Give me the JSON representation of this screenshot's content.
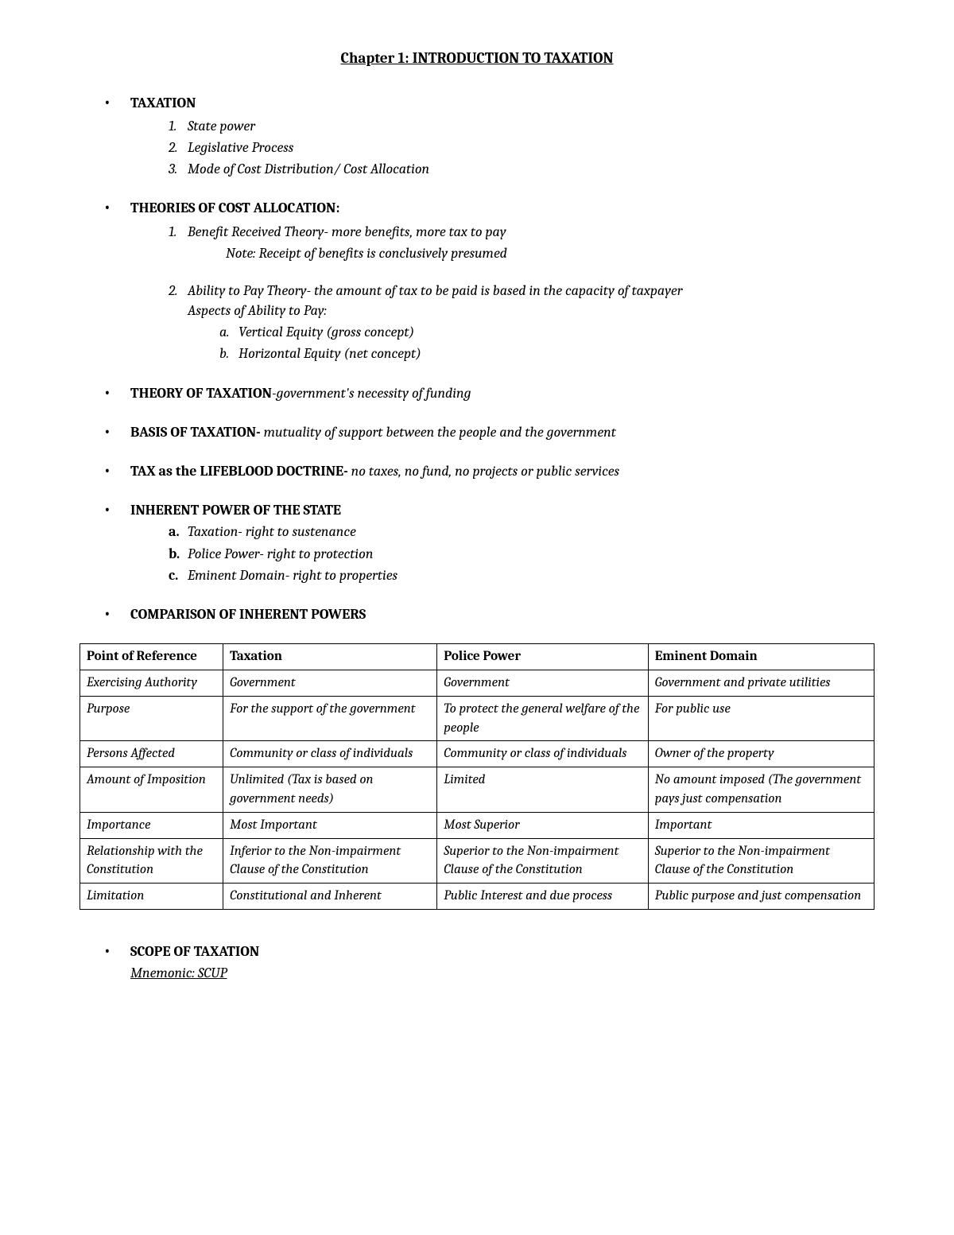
{
  "title": "Chapter 1: INTRODUCTION TO TAXATION",
  "s1": {
    "heading": "TAXATION",
    "items": [
      "State power",
      "Legislative Process",
      "Mode of Cost Distribution/ Cost Allocation"
    ]
  },
  "s2": {
    "heading": "THEORIES OF COST ALLOCATION:",
    "item1": "Benefit Received Theory- more benefits, more tax to pay",
    "note": "Note: Receipt of benefits is conclusively presumed",
    "item2": "Ability to Pay Theory- the amount of tax to be paid is based in the capacity of taxpayer",
    "item2b": "Aspects of Ability to Pay:",
    "sub": [
      "Vertical Equity (gross concept)",
      "Horizontal Equity (net concept)"
    ]
  },
  "s3": {
    "bold": "THEORY OF TAXATION",
    "rest": "-government's necessity of funding"
  },
  "s4": {
    "bold": "BASIS OF TAXATION-",
    "rest": " mutuality of support between the people and the government"
  },
  "s5": {
    "pre": "TAX as the ",
    "bold": "LIFEBLOOD DOCTRINE-",
    "rest": " no taxes, no fund, no projects or public services"
  },
  "s6": {
    "heading": "INHERENT POWER OF THE STATE",
    "items": [
      "Taxation- right to sustenance",
      "Police Power- right to protection",
      "Eminent Domain- right to properties"
    ]
  },
  "s7": {
    "heading": "COMPARISON OF INHERENT POWERS"
  },
  "table": {
    "headers": [
      "Point of Reference",
      "Taxation",
      "Police Power",
      "Eminent Domain"
    ],
    "rows": [
      [
        "Exercising Authority",
        "Government",
        "Government",
        "Government and private utilities"
      ],
      [
        "Purpose",
        "For the support of the government",
        "To protect the general welfare of the people",
        "For public use"
      ],
      [
        "Persons Affected",
        "Community or class of individuals",
        "Community or class of individuals",
        "Owner of the property"
      ],
      [
        "Amount of Imposition",
        "Unlimited (Tax is based on government needs)",
        "Limited",
        "No amount imposed (The government pays just compensation"
      ],
      [
        "Importance",
        "Most Important",
        "Most Superior",
        "Important"
      ],
      [
        "Relationship with the Constitution",
        "Inferior to the Non-impairment Clause of the Constitution",
        "Superior to the Non-impairment Clause of the Constitution",
        "Superior to the Non-impairment Clause of the Constitution"
      ],
      [
        "Limitation",
        "Constitutional and Inherent",
        "Public Interest and due process",
        "Public purpose and just compensation"
      ]
    ]
  },
  "s8": {
    "heading": "SCOPE OF TAXATION",
    "mnemonic": "Mnemonic: SCUP"
  }
}
